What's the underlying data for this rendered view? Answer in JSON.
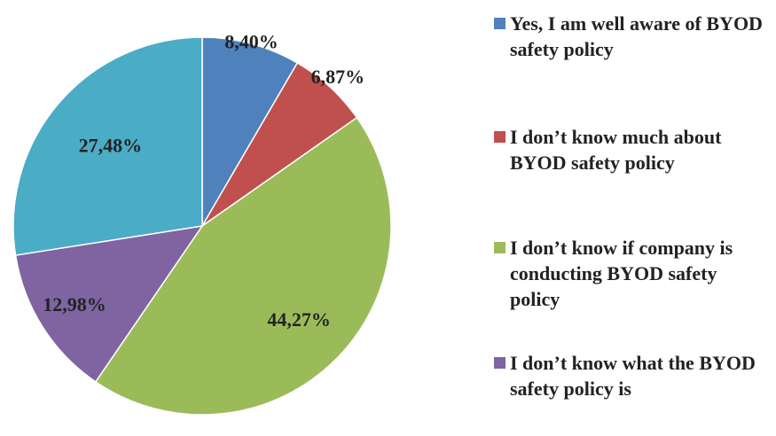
{
  "chart_data": {
    "type": "pie",
    "categories": [
      "Yes, I am well aware of BYOD safety policy",
      "I don’t know much about BYOD safety policy",
      "I don’t know if company is conducting BYOD safety policy",
      "I don’t know what the BYOD safety policy is",
      null
    ],
    "values": [
      8.4,
      6.87,
      44.27,
      12.98,
      27.48
    ],
    "value_labels": [
      "8,40%",
      "6,87%",
      "44,27%",
      "12,98%",
      "27,48%"
    ],
    "colors": [
      "#4f81bd",
      "#c0504d",
      "#9bbb59",
      "#8064a2",
      "#4bacc6"
    ]
  }
}
